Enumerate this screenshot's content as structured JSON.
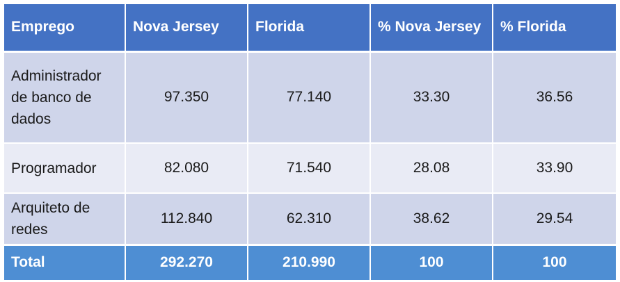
{
  "table": {
    "headers": [
      "Emprego",
      "Nova Jersey",
      "Florida",
      "% Nova Jersey",
      "% Florida"
    ],
    "rows": [
      [
        "Administrador de banco de dados",
        "97.350",
        "77.140",
        "33.30",
        "36.56"
      ],
      [
        "Programador",
        "82.080",
        "71.540",
        "28.08",
        "33.90"
      ],
      [
        "Arquiteto de redes",
        "112.840",
        "62.310",
        "38.62",
        "29.54"
      ]
    ],
    "total": [
      "Total",
      "292.270",
      "210.990",
      "100",
      "100"
    ]
  },
  "colors": {
    "header_bg": "#4472c4",
    "row_dark": "#cfd5ea",
    "row_light": "#e9ebf5",
    "total_bg": "#4e8ed3"
  }
}
